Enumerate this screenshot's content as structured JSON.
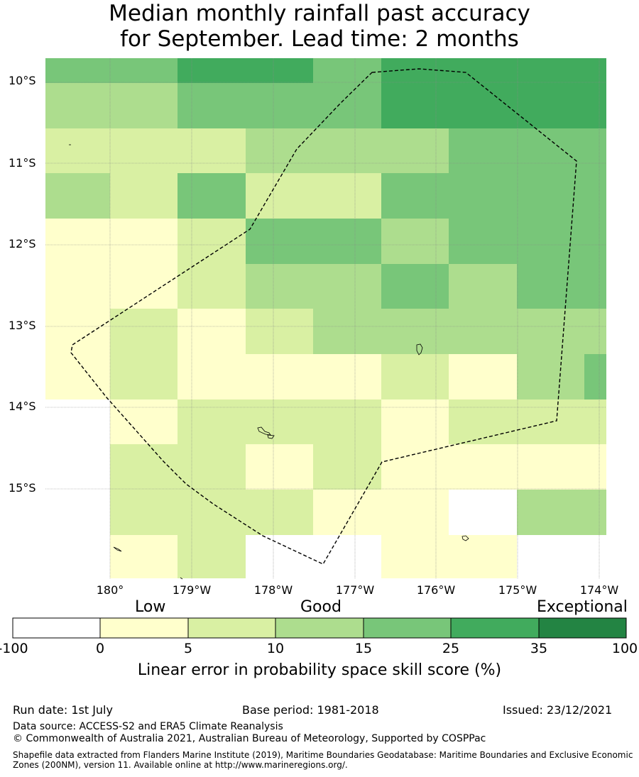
{
  "title": {
    "line1": "Median monthly rainfall past accuracy",
    "line2": "for September. Lead time: 2 months"
  },
  "map": {
    "lat_labels": [
      "10°S",
      "11°S",
      "12°S",
      "13°S",
      "14°S",
      "15°S"
    ],
    "lon_labels": [
      "180°",
      "179°W",
      "178°W",
      "177°W",
      "176°W",
      "175°W",
      "174°W"
    ],
    "grid": [
      [
        2,
        2,
        3,
        3,
        2,
        3,
        3,
        3
      ],
      [
        1,
        1,
        2,
        2,
        2,
        3,
        3,
        3
      ],
      [
        0,
        0,
        0,
        1,
        1,
        1,
        2,
        2
      ],
      [
        1,
        0,
        2,
        0,
        0,
        2,
        2,
        2
      ],
      [
        -1,
        -1,
        0,
        2,
        2,
        1,
        2,
        2
      ],
      [
        -1,
        -1,
        0,
        1,
        1,
        2,
        1,
        2
      ],
      [
        -1,
        0,
        -1,
        0,
        1,
        1,
        1,
        1
      ],
      [
        -1,
        0,
        -1,
        -1,
        -1,
        0,
        -1,
        1
      ],
      [
        null,
        -1,
        0,
        0,
        0,
        -1,
        0,
        0
      ],
      [
        null,
        0,
        0,
        -1,
        0,
        -1,
        -1,
        -1
      ],
      [
        null,
        0,
        0,
        0,
        -1,
        -1,
        null,
        1
      ],
      [
        null,
        -1,
        0,
        null,
        null,
        -1,
        -1,
        null
      ]
    ]
  },
  "colorbar": {
    "category_labels": [
      "Low",
      "Good",
      "Exceptional"
    ],
    "ticks": [
      "-100",
      "0",
      "5",
      "10",
      "15",
      "25",
      "35",
      "100"
    ],
    "colors": [
      "#ffffff",
      "#ffffcc",
      "#d9f0a3",
      "#addd8e",
      "#78c679",
      "#41ab5d",
      "#238443"
    ],
    "title": "Linear error in probability space skill score (%)"
  },
  "footer": {
    "run_date": "Run date: 1st July",
    "base_period": "Base period: 1981-2018",
    "issued": "Issued: 23/12/2021",
    "data_source": "Data source: ACCESS-S2 and ERA5 Climate Reanalysis",
    "copyright": "© Commonwealth of Australia 2021, Australian Bureau of Meteorology, Supported by COSPPac",
    "shapefile": "Shapefile data extracted from Flanders Marine Institute (2019), Maritime Boundaries Geodatabase: Maritime Boundaries and Exclusive Economic Zones (200NM), version 11. Available online at http://www.marineregions.org/."
  }
}
